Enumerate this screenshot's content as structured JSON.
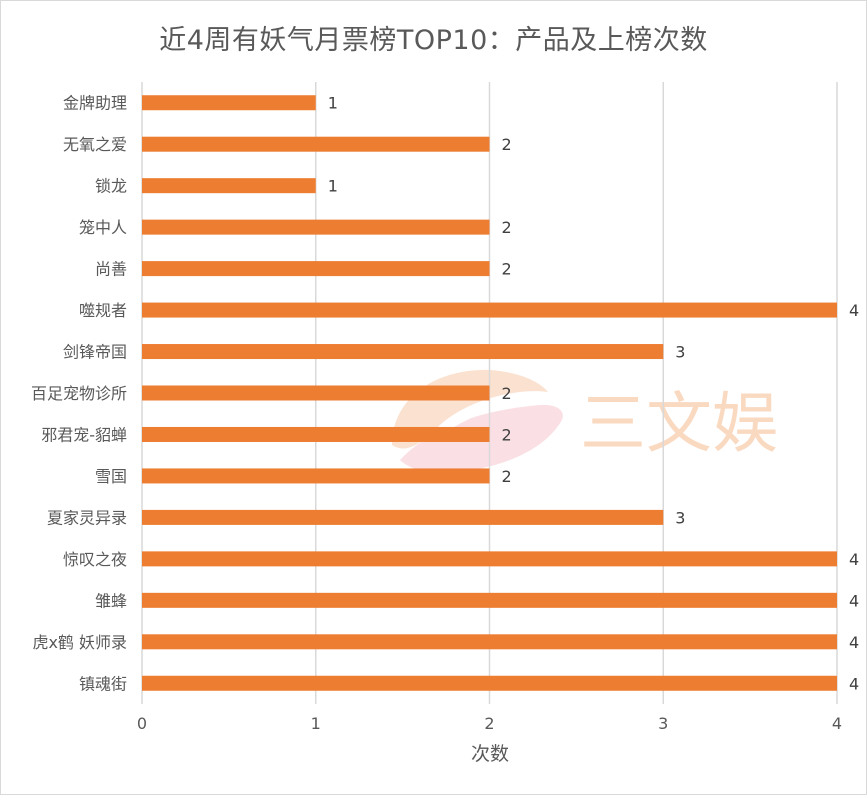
{
  "chart_data": {
    "type": "bar",
    "orientation": "horizontal",
    "title": "近4周有妖气月票榜TOP10：产品及上榜次数",
    "xlabel": "次数",
    "ylabel": "",
    "categories": [
      "金牌助理",
      "无氧之爱",
      "锁龙",
      "笼中人",
      "尚善",
      "噬规者",
      "剑锋帝国",
      "百足宠物诊所",
      "邪君宠-貂蝉",
      "雪国",
      "夏家灵异录",
      "惊叹之夜",
      "雏蜂",
      "虎x鹤 妖师录",
      "镇魂街"
    ],
    "values": [
      1,
      2,
      1,
      2,
      2,
      4,
      3,
      2,
      2,
      2,
      3,
      4,
      4,
      4,
      4
    ],
    "xlim": [
      0,
      4
    ],
    "x_ticks": [
      0,
      1,
      2,
      3,
      4
    ],
    "grid": true,
    "legend": "none",
    "data_labels": true,
    "bar_color": "#ED7D31"
  },
  "watermark": {
    "text": "三文娱",
    "colors": [
      "#F8C9A8",
      "#F6C8CF"
    ]
  },
  "colors": {
    "grid": "#D9D9D9",
    "text": "#595959"
  }
}
